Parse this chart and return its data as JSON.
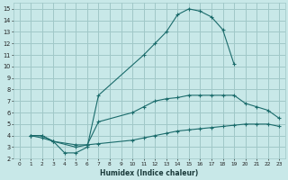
{
  "xlabel": "Humidex (Indice chaleur)",
  "background_color": "#c8e8e8",
  "grid_color": "#a0c8c8",
  "line_color": "#1a6b6b",
  "xlim": [
    -0.5,
    23.5
  ],
  "ylim": [
    2,
    15.5
  ],
  "xticks": [
    0,
    1,
    2,
    3,
    4,
    5,
    6,
    7,
    8,
    9,
    10,
    11,
    12,
    13,
    14,
    15,
    16,
    17,
    18,
    19,
    20,
    21,
    22,
    23
  ],
  "yticks": [
    2,
    3,
    4,
    5,
    6,
    7,
    8,
    9,
    10,
    11,
    12,
    13,
    14,
    15
  ],
  "line1_x": [
    1,
    2,
    3,
    4,
    5,
    6,
    7,
    11,
    12,
    13,
    14,
    15,
    16,
    17,
    18,
    19
  ],
  "line1_y": [
    4,
    4,
    3.5,
    2.5,
    2.5,
    3.0,
    7.5,
    11.0,
    12.0,
    13.0,
    14.5,
    15.0,
    14.8,
    14.3,
    13.2,
    10.2
  ],
  "line2_x": [
    1,
    2,
    3,
    5,
    6,
    7,
    10,
    11,
    12,
    13,
    14,
    15,
    16,
    17,
    18,
    19,
    20,
    21,
    22,
    23
  ],
  "line2_y": [
    4,
    4,
    3.5,
    3.0,
    3.2,
    5.2,
    6.0,
    6.5,
    7.0,
    7.2,
    7.3,
    7.5,
    7.5,
    7.5,
    7.5,
    7.5,
    6.8,
    6.5,
    6.2,
    5.5
  ],
  "line3_x": [
    1,
    2,
    3,
    5,
    6,
    7,
    10,
    11,
    12,
    13,
    14,
    15,
    16,
    17,
    18,
    19,
    20,
    21,
    22,
    23
  ],
  "line3_y": [
    4,
    3.8,
    3.5,
    3.2,
    3.2,
    3.3,
    3.6,
    3.8,
    4.0,
    4.2,
    4.4,
    4.5,
    4.6,
    4.7,
    4.8,
    4.9,
    5.0,
    5.0,
    5.0,
    4.8
  ]
}
